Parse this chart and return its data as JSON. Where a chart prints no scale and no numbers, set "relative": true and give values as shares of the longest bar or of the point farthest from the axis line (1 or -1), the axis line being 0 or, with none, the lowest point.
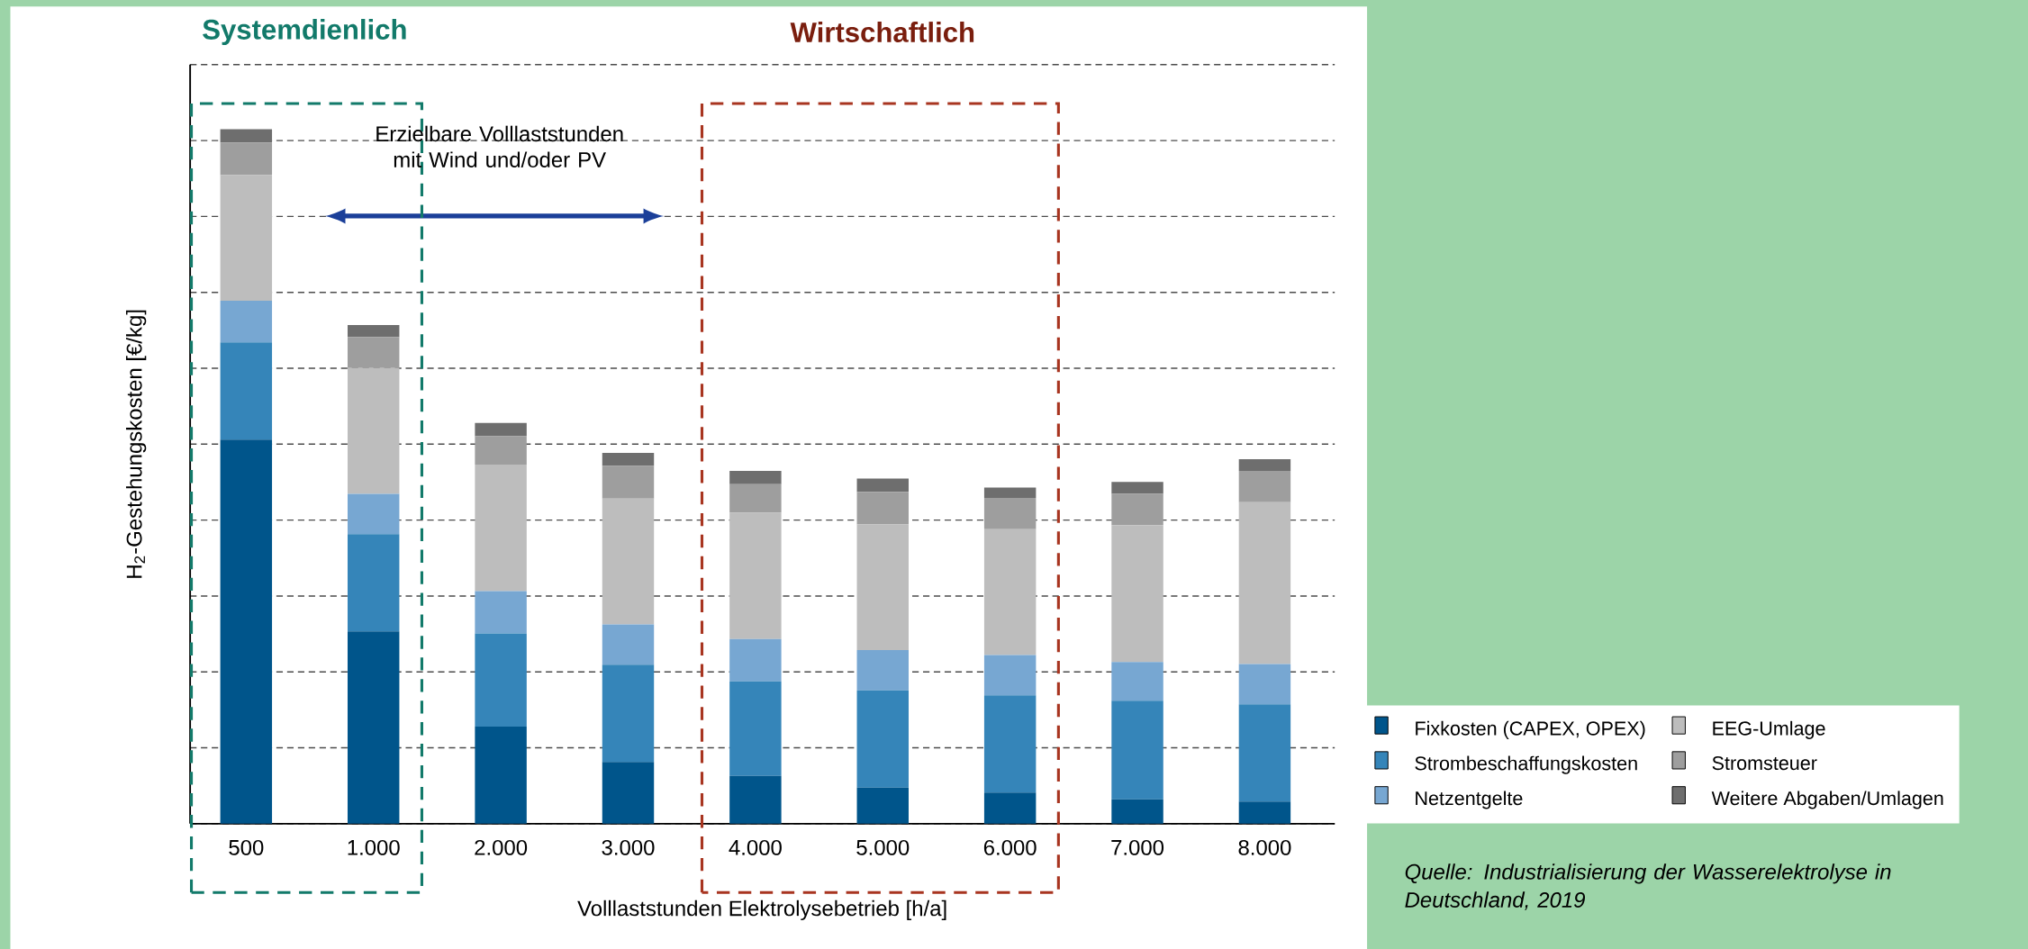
{
  "chart_data": {
    "type": "bar",
    "stacked": true,
    "relative": true,
    "categories": [
      "500",
      "1.000",
      "2.000",
      "3.000",
      "4.000",
      "5.000",
      "6.000",
      "7.000",
      "8.000"
    ],
    "xlabel": "Volllaststunden Elektrolysebetrieb [h/a]",
    "ylabel": "H$_{2}$-Gestehungskosten [€/kg]",
    "series": [
      {
        "name": "Fixkosten (CAPEX, OPEX)",
        "color": "#00558b",
        "values": [
          0.553,
          0.277,
          0.14,
          0.089,
          0.069,
          0.052,
          0.045,
          0.035,
          0.032
        ]
      },
      {
        "name": "Strombeschaffungskosten",
        "color": "#3585b9",
        "values": [
          0.14,
          0.14,
          0.134,
          0.14,
          0.136,
          0.14,
          0.14,
          0.142,
          0.14
        ]
      },
      {
        "name": "Netzentgelte",
        "color": "#77a7d2",
        "values": [
          0.06,
          0.058,
          0.061,
          0.058,
          0.061,
          0.058,
          0.058,
          0.056,
          0.058
        ]
      },
      {
        "name": "EEG-Umlage",
        "color": "#bdbdbd",
        "values": [
          0.181,
          0.181,
          0.182,
          0.181,
          0.182,
          0.181,
          0.181,
          0.197,
          0.233
        ]
      },
      {
        "name": "Stromsteuer",
        "color": "#9e9e9e",
        "values": [
          0.047,
          0.045,
          0.041,
          0.047,
          0.041,
          0.047,
          0.045,
          0.045,
          0.045
        ]
      },
      {
        "name": "Weitere Abgaben/Umlagen",
        "color": "#6e6e6e",
        "values": [
          0.019,
          0.017,
          0.019,
          0.019,
          0.019,
          0.019,
          0.015,
          0.017,
          0.017
        ]
      }
    ],
    "grid": "y",
    "legend": "bottom right",
    "annotations": [
      "Systemdienlich",
      "Wirtschaftlich",
      "Erzielbare Volllaststunden mit Wind und/oder PV",
      "Quelle: Industrialisierung der Wasserelektrolyse in Deutschland, 2019"
    ]
  }
}
